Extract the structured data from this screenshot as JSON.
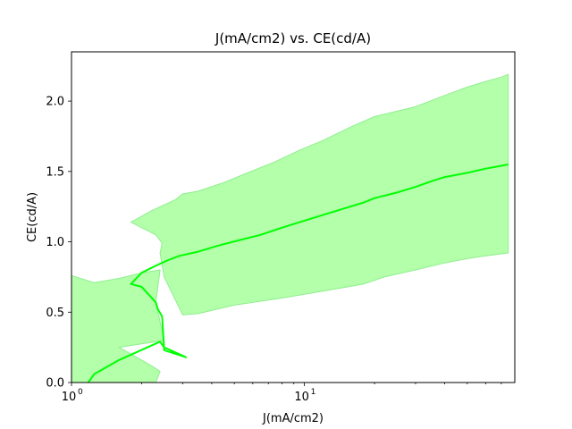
{
  "chart_data": {
    "type": "line",
    "title": "J(mA/cm2) vs. CE(cd/A)",
    "xlabel": "J(mA/cm2)",
    "ylabel": "CE(cd/A)",
    "xscale": "log",
    "xlim": [
      1,
      80
    ],
    "ylim": [
      0,
      2.35
    ],
    "grid": false,
    "legend": "none",
    "line_color": "#00ff00",
    "band_color": "#b3ffaa",
    "band_edge_color": "#90ee90",
    "x_ticks": [
      {
        "value": 1,
        "label": "10",
        "exp": "0"
      },
      {
        "value": 10,
        "label": "10",
        "exp": "1"
      }
    ],
    "x_minor_ticks": [
      2,
      3,
      4,
      5,
      6,
      7,
      8,
      9,
      20,
      30,
      40,
      50,
      60,
      70
    ],
    "y_ticks": [
      {
        "value": 0.0,
        "label": "0.0"
      },
      {
        "value": 0.5,
        "label": "0.5"
      },
      {
        "value": 1.0,
        "label": "1.0"
      },
      {
        "value": 1.5,
        "label": "1.5"
      },
      {
        "value": 2.0,
        "label": "2.0"
      }
    ],
    "series": [
      {
        "points": [
          [
            1.18,
            0.0
          ],
          [
            1.25,
            0.06
          ],
          [
            1.6,
            0.16
          ],
          [
            2.4,
            0.29
          ],
          [
            2.5,
            0.25
          ],
          [
            3.1,
            0.18
          ],
          [
            2.5,
            0.23
          ],
          [
            2.45,
            0.47
          ],
          [
            2.35,
            0.52
          ],
          [
            2.3,
            0.57
          ],
          [
            2.0,
            0.68
          ],
          [
            1.8,
            0.7
          ],
          [
            2.0,
            0.78
          ],
          [
            2.3,
            0.83
          ],
          [
            2.6,
            0.87
          ],
          [
            2.9,
            0.9
          ],
          [
            3.5,
            0.93
          ],
          [
            4.2,
            0.97
          ],
          [
            5.2,
            1.01
          ],
          [
            6.5,
            1.05
          ],
          [
            8.0,
            1.1
          ],
          [
            10,
            1.15
          ],
          [
            12,
            1.19
          ],
          [
            15,
            1.24
          ],
          [
            18,
            1.28
          ],
          [
            20,
            1.31
          ],
          [
            25,
            1.35
          ],
          [
            30,
            1.39
          ],
          [
            35,
            1.43
          ],
          [
            40,
            1.46
          ],
          [
            50,
            1.49
          ],
          [
            60,
            1.52
          ],
          [
            70,
            1.54
          ],
          [
            75,
            1.55
          ]
        ]
      }
    ],
    "bands": [
      {
        "points": [
          [
            1.0,
            0.76
          ],
          [
            1.25,
            0.71
          ],
          [
            1.6,
            0.74
          ],
          [
            2.0,
            0.78
          ],
          [
            2.4,
            0.8
          ],
          [
            2.3,
            0.57
          ],
          [
            2.5,
            0.3
          ],
          [
            1.6,
            0.25
          ],
          [
            2.2,
            0.12
          ],
          [
            2.4,
            0.08
          ],
          [
            2.3,
            0.0
          ],
          [
            1.0,
            0.0
          ]
        ]
      },
      {
        "points": [
          [
            1.8,
            1.14
          ],
          [
            2.2,
            1.22
          ],
          [
            2.8,
            1.3
          ],
          [
            3.0,
            1.34
          ],
          [
            3.5,
            1.36
          ],
          [
            4.5,
            1.42
          ],
          [
            5.5,
            1.48
          ],
          [
            7.5,
            1.57
          ],
          [
            9.5,
            1.65
          ],
          [
            12,
            1.72
          ],
          [
            16,
            1.82
          ],
          [
            20,
            1.89
          ],
          [
            30,
            1.96
          ],
          [
            40,
            2.04
          ],
          [
            50,
            2.1
          ],
          [
            60,
            2.14
          ],
          [
            70,
            2.17
          ],
          [
            75,
            2.19
          ],
          [
            75,
            0.92
          ],
          [
            60,
            0.9
          ],
          [
            50,
            0.88
          ],
          [
            40,
            0.85
          ],
          [
            30,
            0.8
          ],
          [
            22,
            0.75
          ],
          [
            18,
            0.7
          ],
          [
            12,
            0.65
          ],
          [
            8,
            0.6
          ],
          [
            5,
            0.55
          ],
          [
            3.5,
            0.49
          ],
          [
            3.0,
            0.48
          ],
          [
            2.5,
            0.75
          ],
          [
            2.4,
            0.92
          ],
          [
            2.45,
            0.99
          ],
          [
            2.3,
            1.05
          ],
          [
            2.0,
            1.1
          ]
        ]
      }
    ]
  }
}
